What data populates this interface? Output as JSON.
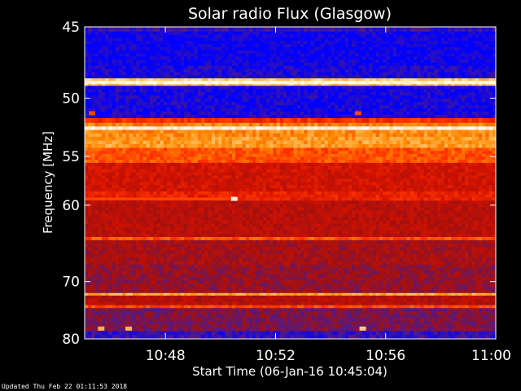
{
  "chart_data": {
    "type": "heatmap",
    "title": "Solar radio Flux (Glasgow)",
    "ylabel": "Frequency [MHz]",
    "xlabel": "Start Time (06-Jan-16 10:45:04)",
    "y_scale": "reciprocal",
    "ylim": [
      45,
      80
    ],
    "yticks": [
      {
        "value": 45,
        "label": "45"
      },
      {
        "value": 50,
        "label": "50"
      },
      {
        "value": 55,
        "label": "55"
      },
      {
        "value": 60,
        "label": "60"
      },
      {
        "value": 70,
        "label": "70"
      },
      {
        "value": 80,
        "label": "80"
      }
    ],
    "xlim": [
      "10:45:04",
      "11:00:00"
    ],
    "xticks": [
      {
        "value": "10:48",
        "label": "10:48"
      },
      {
        "value": "10:52",
        "label": "10:52"
      },
      {
        "value": "10:56",
        "label": "10:56"
      },
      {
        "value": "11:00",
        "label": "11:00"
      }
    ],
    "colormap": [
      "#0000ff",
      "#4b1a90",
      "#a31010",
      "#d21200",
      "#ff3300",
      "#ff8a00",
      "#ffd080",
      "#ffffff"
    ],
    "frequency_bands": [
      {
        "from": 45.0,
        "to": 45.3,
        "intensity": 0.1
      },
      {
        "from": 45.3,
        "to": 47.6,
        "intensity": 0.02
      },
      {
        "from": 47.6,
        "to": 48.5,
        "intensity": 0.05
      },
      {
        "from": 48.5,
        "to": 48.7,
        "intensity": 0.85
      },
      {
        "from": 48.7,
        "to": 48.9,
        "intensity": 1.0
      },
      {
        "from": 48.9,
        "to": 49.05,
        "intensity": 0.85
      },
      {
        "from": 49.05,
        "to": 51.6,
        "intensity": 0.04
      },
      {
        "from": 51.6,
        "to": 52.0,
        "intensity": 0.55
      },
      {
        "from": 52.0,
        "to": 52.3,
        "intensity": 0.7
      },
      {
        "from": 52.3,
        "to": 52.6,
        "intensity": 0.95
      },
      {
        "from": 52.6,
        "to": 53.2,
        "intensity": 0.72
      },
      {
        "from": 53.2,
        "to": 54.2,
        "intensity": 0.75
      },
      {
        "from": 54.2,
        "to": 55.6,
        "intensity": 0.62
      },
      {
        "from": 55.6,
        "to": 58.5,
        "intensity": 0.42
      },
      {
        "from": 58.5,
        "to": 59.5,
        "intensity": 0.5
      },
      {
        "from": 59.5,
        "to": 63.8,
        "intensity": 0.35
      },
      {
        "from": 63.8,
        "to": 64.2,
        "intensity": 0.62
      },
      {
        "from": 64.2,
        "to": 67.5,
        "intensity": 0.3
      },
      {
        "from": 67.5,
        "to": 71.8,
        "intensity": 0.26
      },
      {
        "from": 71.8,
        "to": 72.2,
        "intensity": 0.78
      },
      {
        "from": 72.2,
        "to": 73.8,
        "intensity": 0.34
      },
      {
        "from": 73.8,
        "to": 74.3,
        "intensity": 0.6
      },
      {
        "from": 74.3,
        "to": 78.5,
        "intensity": 0.22
      },
      {
        "from": 78.5,
        "to": 80.0,
        "intensity": 0.1
      }
    ],
    "features": [
      {
        "type": "drift-streak",
        "freq": 59.3,
        "from": "10:45:04",
        "to": "10:50:20",
        "intensity": 0.6
      },
      {
        "type": "burst",
        "freq": 59.3,
        "time": "10:50:30",
        "intensity": 0.95
      },
      {
        "type": "burst",
        "freq": 78.0,
        "time": "10:45:40",
        "intensity": 0.8
      },
      {
        "type": "burst",
        "freq": 78.0,
        "time": "10:46:40",
        "intensity": 0.8
      },
      {
        "type": "burst",
        "freq": 78.0,
        "time": "10:55:10",
        "intensity": 0.85
      },
      {
        "type": "burst",
        "freq": 51.2,
        "time": "10:45:20",
        "intensity": 0.6
      },
      {
        "type": "burst",
        "freq": 51.2,
        "time": "10:55:00",
        "intensity": 0.6
      }
    ],
    "grid": false
  },
  "footer": "Updated Thu Feb 22 01:11:53 2018"
}
